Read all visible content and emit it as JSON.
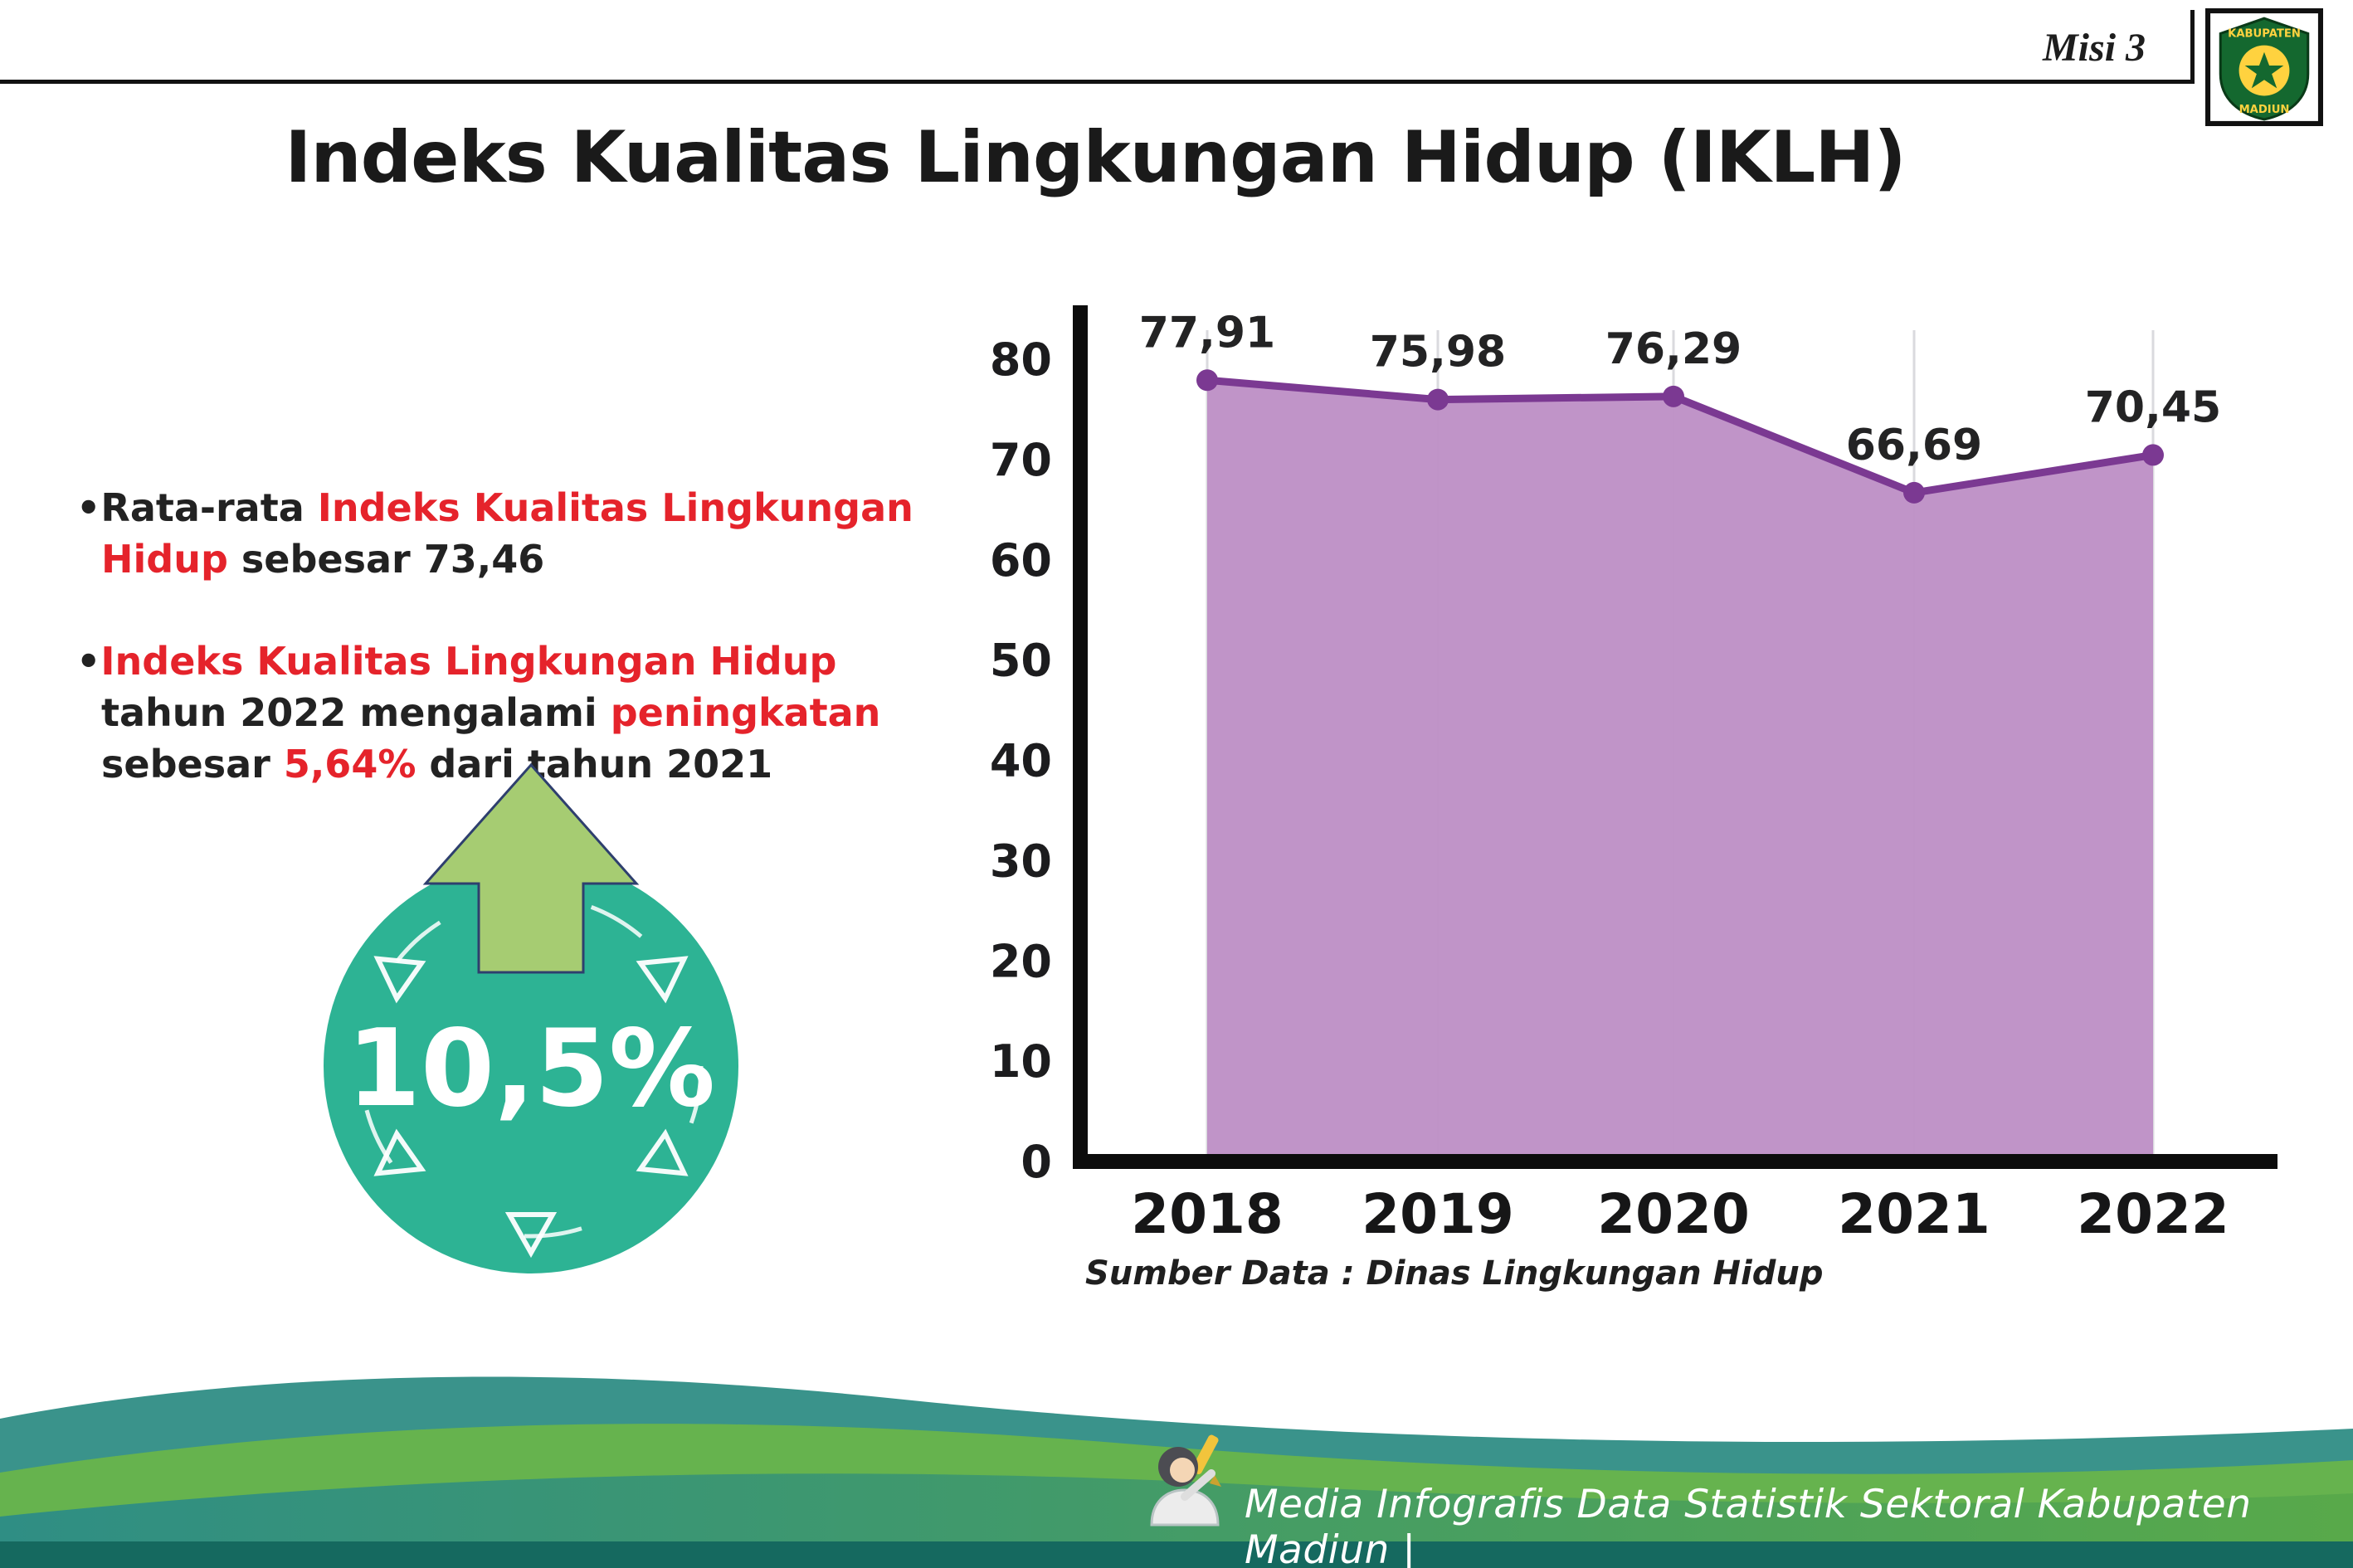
{
  "header": {
    "misi": "Misi 3",
    "title": "Indeks Kualitas Lingkungan Hidup (IKLH)"
  },
  "logo": {
    "top": "KABUPATEN",
    "bottom": "MADIUN"
  },
  "bullets": [
    {
      "marker": "•",
      "segments": [
        {
          "text": "Rata-rata ",
          "style": "normal"
        },
        {
          "text": "Indeks Kualitas Lingkungan Hidup",
          "style": "red"
        },
        {
          "text": " sebesar 73,46",
          "style": "normal"
        }
      ]
    },
    {
      "marker": "•",
      "segments": [
        {
          "text": "Indeks Kualitas Lingkungan Hidup",
          "style": "red"
        },
        {
          "text": " tahun 2022 mengalami ",
          "style": "normal"
        },
        {
          "text": "peningkatan",
          "style": "red"
        },
        {
          "text": " sebesar ",
          "style": "normal"
        },
        {
          "text": "5,64%",
          "style": "red"
        },
        {
          "text": " dari tahun 2021",
          "style": "normal"
        }
      ]
    }
  ],
  "badge": {
    "value": "10,5%"
  },
  "chart_data": {
    "type": "area",
    "title": "Indeks Kualitas Lingkungan Hidup (IKLH)",
    "categories": [
      "2018",
      "2019",
      "2020",
      "2021",
      "2022"
    ],
    "values": [
      77.91,
      75.98,
      76.29,
      66.69,
      70.45
    ],
    "labels": [
      "77,91",
      "75,98",
      "76,29",
      "66,69",
      "70,45"
    ],
    "ylim": [
      0,
      80
    ],
    "yticks": [
      0,
      10,
      20,
      30,
      40,
      50,
      60,
      70,
      80
    ],
    "xlabel": "",
    "ylabel": "",
    "grid": "vertical-light",
    "legend": "none",
    "source": "Sumber Data : Dinas Lingkungan Hidup"
  },
  "footer": {
    "text": "Media Infografis Data Statistik Sektoral Kabupaten Madiun |"
  },
  "colors": {
    "text_dark": "#231f20",
    "accent_red": "#e5232b",
    "chart_fill": "#bd90c6",
    "chart_line": "#7b3992",
    "badge_teal": "#2db394",
    "arrow_green": "#a6cc72",
    "footer_dark": "#15695f"
  }
}
